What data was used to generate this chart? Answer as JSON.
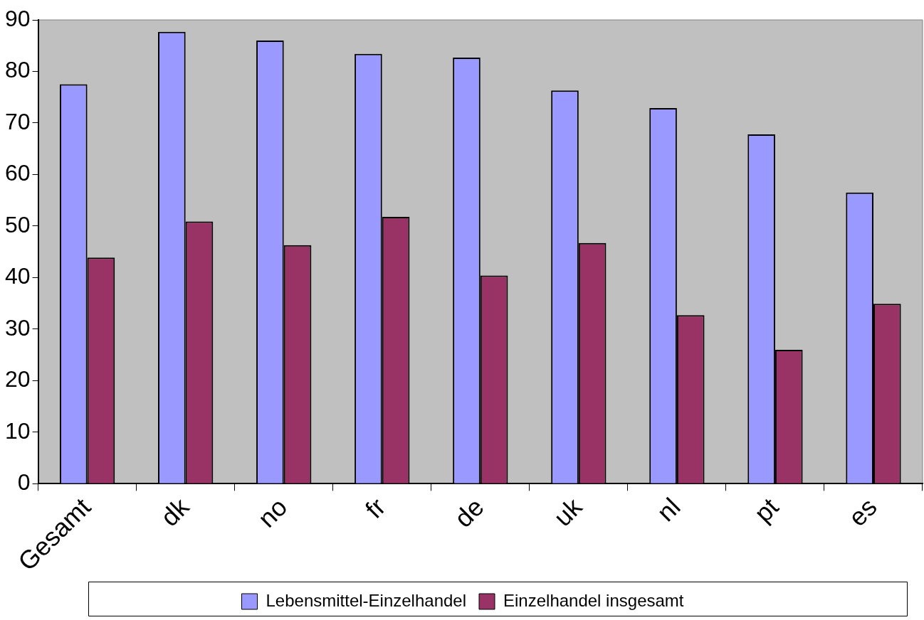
{
  "chart_data": {
    "type": "bar",
    "categories": [
      "Gesamt",
      "dk",
      "no",
      "fr",
      "de",
      "uk",
      "nl",
      "pt",
      "es"
    ],
    "series": [
      {
        "name": "Lebensmittel-Einzelhandel",
        "color": "#9999ff",
        "values": [
          77.5,
          87.7,
          86.0,
          83.4,
          82.7,
          76.3,
          72.9,
          67.8,
          56.5
        ]
      },
      {
        "name": "Einzelhandel insgesamt",
        "color": "#993366",
        "values": [
          43.9,
          50.9,
          46.3,
          51.8,
          40.4,
          46.7,
          32.7,
          26.0,
          34.9
        ]
      }
    ],
    "ylim": [
      0,
      90
    ],
    "yticks": [
      0,
      10,
      20,
      30,
      40,
      50,
      60,
      70,
      80,
      90
    ],
    "grid": false,
    "legend": "bottom"
  }
}
